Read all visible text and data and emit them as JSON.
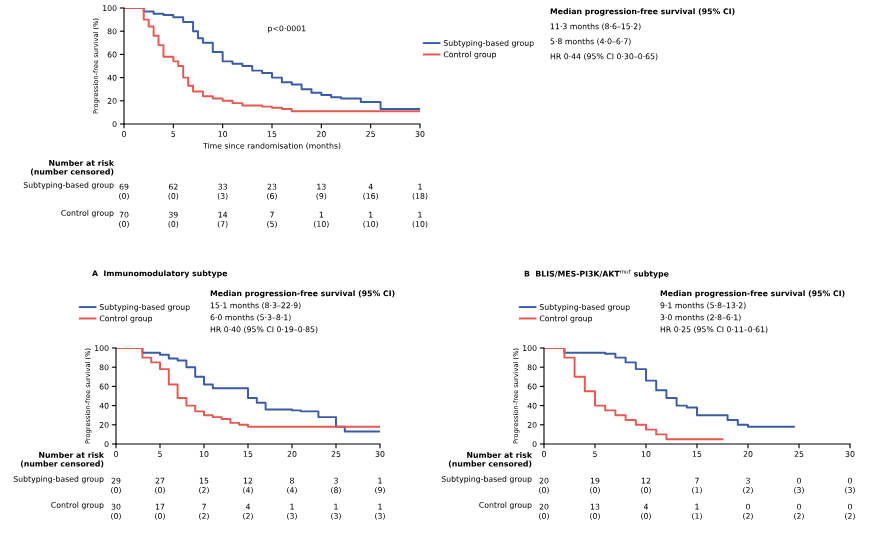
{
  "chart_data": [
    {
      "type": "step",
      "xlabel": "Time since randomisation (months)",
      "ylabel": "Progression-free survival (%)",
      "xlim": [
        0,
        30
      ],
      "xticks": [
        0,
        5,
        10,
        15,
        20,
        25,
        30
      ],
      "ylim": [
        0,
        100
      ],
      "yticks": [
        0,
        20,
        40,
        60,
        80,
        100
      ],
      "legend": "right",
      "series": [
        {
          "name": "Subtyping-based group",
          "color": "#3b5ba5",
          "x": [
            0,
            1.5,
            2,
            3,
            4,
            5,
            6,
            7,
            7.5,
            8,
            9,
            10,
            11,
            12,
            13,
            14,
            15,
            16,
            17,
            18,
            19,
            20,
            21,
            22,
            24,
            26,
            30
          ],
          "values": [
            100,
            100,
            97,
            95,
            94,
            92,
            88,
            80,
            74,
            70,
            62,
            54,
            52,
            50,
            46,
            44,
            40,
            36,
            34,
            30,
            27,
            25,
            23,
            22,
            19,
            13,
            13
          ]
        },
        {
          "name": "Control group",
          "color": "#e25a52",
          "x": [
            0,
            1.5,
            2,
            2.5,
            3,
            3.5,
            4,
            5,
            5.5,
            6,
            6.5,
            7,
            8,
            9,
            10,
            11,
            12,
            14,
            15,
            16,
            17,
            30
          ],
          "values": [
            100,
            100,
            90,
            84,
            76,
            68,
            58,
            54,
            50,
            40,
            33,
            28,
            24,
            22,
            20,
            18,
            16,
            15,
            14,
            13,
            11,
            11
          ]
        }
      ],
      "annotations": [
        "p<0·0001",
        "Median progression-free survival (95% CI)",
        "11·3 months (8·6–15·2)",
        "5·8 months (4·0–6·7)",
        "HR 0·44 (95% CI 0·30–0·65)",
        "Number at risk\n(number censored)",
        "Subtyping-based group",
        "69\n(0)",
        "62\n(0)",
        "33\n(3)",
        "23\n(6)",
        "13\n(9)",
        "4\n(16)",
        "1\n(18)",
        "Control group",
        "70\n(0)",
        "39\n(0)",
        "14\n(7)",
        "7\n(5)",
        "1\n(10)",
        "1\n(10)",
        "1\n(10)"
      ]
    },
    {
      "type": "step",
      "title": "A  Immunomodulatory subtype",
      "ylabel": "Progression-free survival (%)",
      "xlim": [
        0,
        30
      ],
      "xticks": [
        0,
        5,
        10,
        15,
        20,
        25,
        30
      ],
      "ylim": [
        0,
        100
      ],
      "yticks": [
        0,
        20,
        40,
        60,
        80,
        100
      ],
      "legend": "top",
      "series": [
        {
          "name": "Subtyping-based group",
          "color": "#3b5ba5",
          "x": [
            0,
            3,
            5,
            6,
            7,
            8,
            9,
            10,
            11,
            14,
            15,
            16,
            17,
            20,
            21,
            23,
            25,
            26,
            30
          ],
          "values": [
            100,
            95,
            93,
            89,
            87,
            80,
            70,
            62,
            58,
            58,
            48,
            43,
            36,
            35,
            34,
            28,
            18,
            13,
            13
          ]
        },
        {
          "name": "Control group",
          "color": "#e25a52",
          "x": [
            0,
            2,
            3,
            4,
            5,
            6,
            7,
            8,
            9,
            10,
            11,
            12,
            13,
            14,
            15,
            30
          ],
          "values": [
            100,
            100,
            90,
            85,
            78,
            62,
            48,
            40,
            34,
            30,
            28,
            26,
            22,
            20,
            18,
            18
          ]
        }
      ],
      "annotations": [
        "Median progression-free survival (95% CI)",
        "15·1 months (8·3–22·9)",
        "6·0 months (5·3–8·1)",
        "HR 0·40 (95% CI 0·19–0·85)",
        "Number at risk\n(number censored)",
        "Subtyping-based group",
        "29\n(0)",
        "27\n(0)",
        "15\n(2)",
        "12\n(4)",
        "8\n(4)",
        "3\n(8)",
        "1\n(9)",
        "Control group",
        "30\n(0)",
        "17\n(0)",
        "7\n(2)",
        "4\n(2)",
        "1\n(3)",
        "1\n(3)",
        "1\n(3)"
      ]
    },
    {
      "type": "step",
      "title": "B  BLIS/MES-PI3K/AKT$^{mut}$ subtype",
      "ylabel": "Progression-free survival (%)",
      "xlim": [
        0,
        30
      ],
      "xticks": [
        0,
        5,
        10,
        15,
        20,
        25,
        30
      ],
      "ylim": [
        0,
        100
      ],
      "yticks": [
        0,
        20,
        40,
        60,
        80,
        100
      ],
      "legend": "top",
      "series": [
        {
          "name": "Subtyping-based group",
          "color": "#3b5ba5",
          "x": [
            0,
            1.5,
            2,
            6,
            7,
            8,
            9,
            10,
            11,
            12,
            13,
            14,
            15,
            18,
            19,
            20,
            24.5
          ],
          "values": [
            100,
            100,
            95,
            94,
            90,
            85,
            78,
            66,
            56,
            48,
            40,
            38,
            30,
            25,
            20,
            18,
            18
          ]
        },
        {
          "name": "Control group",
          "color": "#e25a52",
          "x": [
            0,
            1.5,
            2,
            3,
            4,
            5,
            6,
            7,
            8,
            9,
            10,
            11,
            12,
            17.5
          ],
          "values": [
            100,
            100,
            90,
            70,
            55,
            40,
            35,
            30,
            25,
            20,
            15,
            10,
            5,
            5
          ]
        }
      ],
      "annotations": [
        "Median progression-free survival (95% CI)",
        "9·1 months (5·8–13·2)",
        "3·0 months (2·8–6·1)",
        "HR 0·25 (95% CI 0·11–0·61)",
        "Number at risk\n(number censored)",
        "Subtyping-based group",
        "20\n(0)",
        "19\n(0)",
        "12\n(0)",
        "7\n(1)",
        "3\n(2)",
        "0\n(3)",
        "0\n(3)",
        "Control group",
        "20\n(0)",
        "13\n(0)",
        "4\n(0)",
        "1\n(1)",
        "0\n(2)",
        "0\n(2)",
        "0\n(2)"
      ]
    }
  ]
}
